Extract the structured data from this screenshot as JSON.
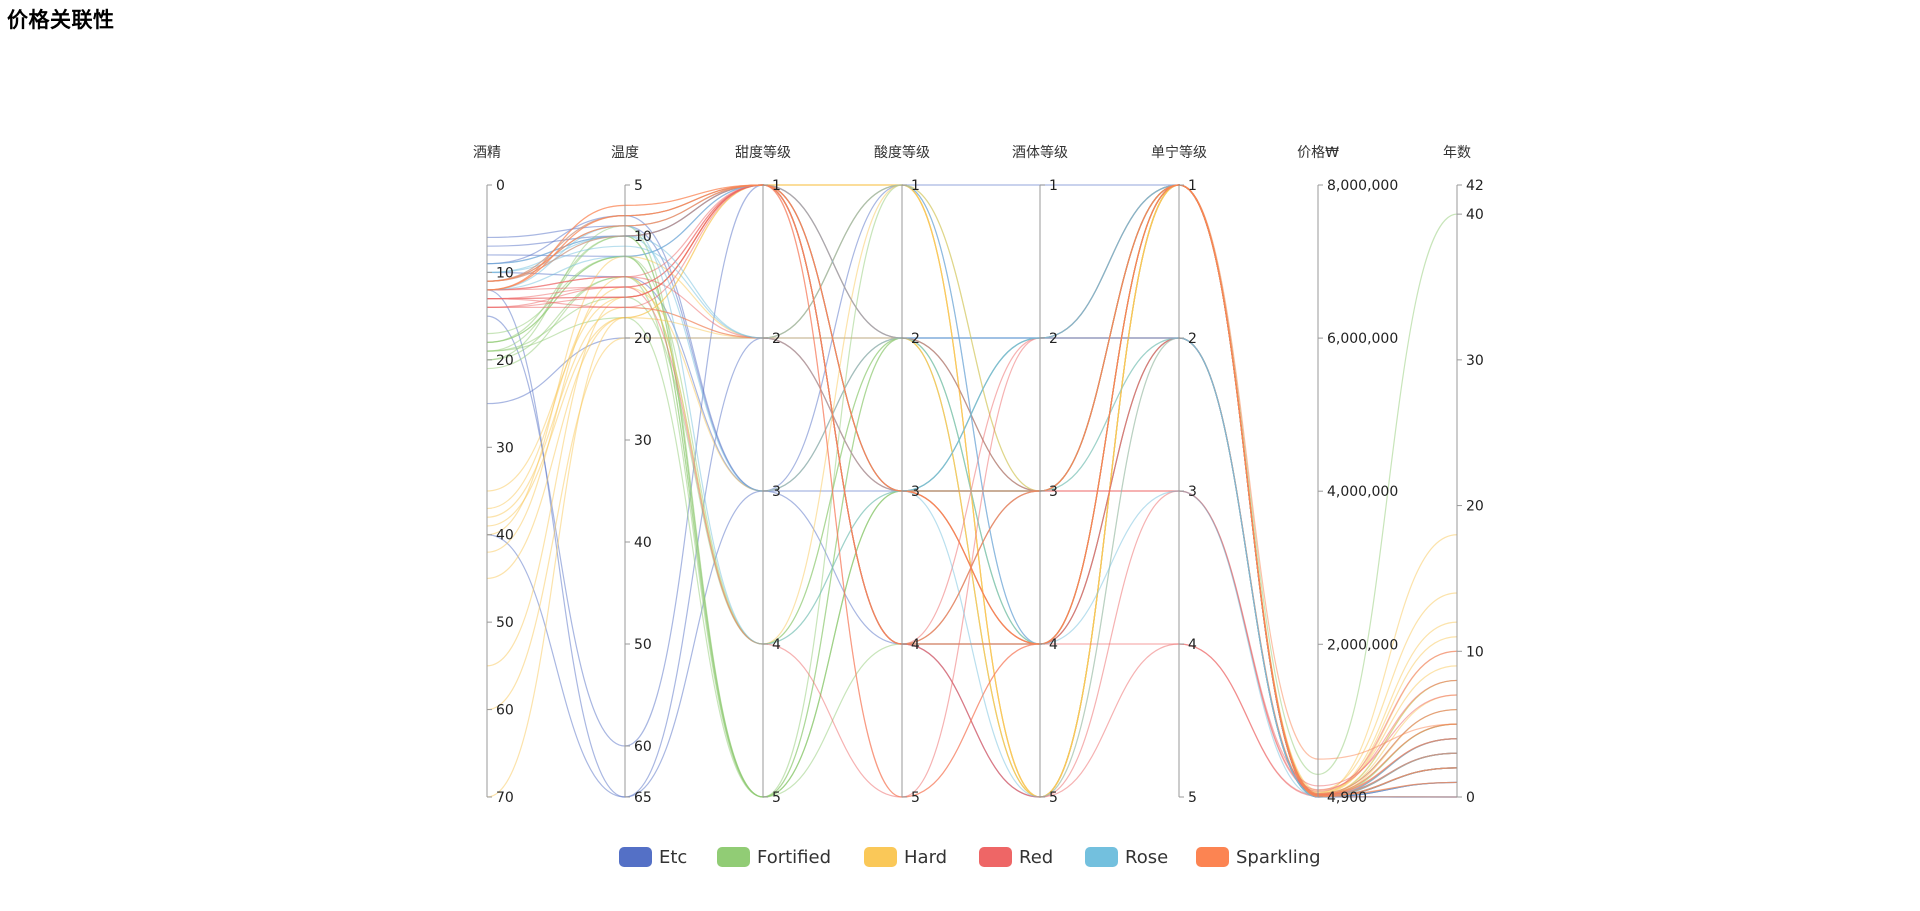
{
  "page": {
    "title": "价格关联性"
  },
  "colors": {
    "Etc": "#5470c6",
    "Fortified": "#91cc75",
    "Hard": "#fac858",
    "Red": "#ee6666",
    "Rose": "#73c0de",
    "Sparkling": "#fc8452"
  },
  "chart_data": {
    "type": "parallel",
    "curve": "smooth",
    "legend_position": "bottom",
    "axes": [
      {
        "name": "酒精",
        "min": 0,
        "max": 70,
        "inverse": true,
        "ticks": [
          "0",
          "10",
          "20",
          "30",
          "40",
          "50",
          "60",
          "70"
        ],
        "tick_values": [
          0,
          10,
          20,
          30,
          40,
          50,
          60,
          70
        ]
      },
      {
        "name": "温度",
        "min": 5,
        "max": 65,
        "inverse": true,
        "ticks": [
          "5",
          "10",
          "20",
          "30",
          "40",
          "50",
          "60",
          "65"
        ],
        "tick_values": [
          5,
          10,
          20,
          30,
          40,
          50,
          60,
          65
        ]
      },
      {
        "name": "甜度等级",
        "min": 1,
        "max": 5,
        "inverse": true,
        "ticks": [
          "1",
          "2",
          "3",
          "4",
          "5"
        ],
        "tick_values": [
          1,
          2,
          3,
          4,
          5
        ]
      },
      {
        "name": "酸度等级",
        "min": 1,
        "max": 5,
        "inverse": true,
        "ticks": [
          "1",
          "2",
          "3",
          "4",
          "5"
        ],
        "tick_values": [
          1,
          2,
          3,
          4,
          5
        ]
      },
      {
        "name": "酒体等级",
        "min": 1,
        "max": 5,
        "inverse": true,
        "ticks": [
          "1",
          "2",
          "3",
          "4",
          "5"
        ],
        "tick_values": [
          1,
          2,
          3,
          4,
          5
        ]
      },
      {
        "name": "单宁等级",
        "min": 1,
        "max": 5,
        "inverse": true,
        "ticks": [
          "1",
          "2",
          "3",
          "4",
          "5"
        ],
        "tick_values": [
          1,
          2,
          3,
          4,
          5
        ]
      },
      {
        "name": "价格₩",
        "min": 4900,
        "max": 8000000,
        "inverse": false,
        "ticks": [
          "4,900",
          "2,000,000",
          "4,000,000",
          "6,000,000",
          "8,000,000"
        ],
        "tick_values": [
          4900,
          2000000,
          4000000,
          6000000,
          8000000
        ]
      },
      {
        "name": "年数",
        "min": 0,
        "max": 42,
        "inverse": false,
        "ticks": [
          "0",
          "10",
          "20",
          "30",
          "40",
          "42"
        ],
        "tick_values": [
          0,
          10,
          20,
          30,
          40,
          42
        ]
      }
    ],
    "legend": [
      "Etc",
      "Fortified",
      "Hard",
      "Red",
      "Rose",
      "Sparkling"
    ],
    "series": [
      {
        "name": "Etc",
        "data": [
          [
            7,
            10,
            1,
            2,
            2,
            1,
            5000,
            1
          ],
          [
            9,
            8,
            3,
            1,
            4,
            1,
            6000,
            2
          ],
          [
            8,
            12,
            1,
            3,
            2,
            2,
            8000,
            3
          ],
          [
            25,
            20,
            2,
            1,
            1,
            1,
            5500,
            0
          ],
          [
            6,
            9,
            3,
            4,
            4,
            1,
            7000,
            2
          ],
          [
            40,
            65,
            3,
            2,
            2,
            2,
            5000,
            1
          ],
          [
            15,
            60,
            1,
            3,
            3,
            1,
            6000,
            0
          ],
          [
            12,
            65,
            2,
            2,
            3,
            1,
            5000,
            4
          ],
          [
            9,
            10,
            1,
            4,
            5,
            1,
            5500,
            2
          ],
          [
            10,
            14,
            3,
            3,
            4,
            2,
            6000,
            1
          ]
        ]
      },
      {
        "name": "Fortified",
        "data": [
          [
            19,
            10,
            5,
            2,
            3,
            1,
            10000,
            2
          ],
          [
            18,
            12,
            4,
            3,
            3,
            2,
            12000,
            3
          ],
          [
            20,
            14,
            5,
            2,
            4,
            1,
            50000,
            6
          ],
          [
            18,
            10,
            5,
            3,
            2,
            1,
            15000,
            5
          ],
          [
            17,
            12,
            5,
            1,
            3,
            1,
            20000,
            8
          ],
          [
            19,
            16,
            4,
            2,
            4,
            2,
            9000,
            2
          ],
          [
            20,
            9,
            5,
            3,
            3,
            1,
            300000,
            40
          ],
          [
            18,
            12,
            5,
            4,
            4,
            1,
            14000,
            4
          ],
          [
            21,
            14,
            4,
            2,
            5,
            1,
            20000,
            3
          ],
          [
            19,
            18,
            5,
            3,
            3,
            1,
            30000,
            5
          ]
        ]
      },
      {
        "name": "Hard",
        "data": [
          [
            40,
            12,
            2,
            1,
            5,
            1,
            50000,
            12
          ],
          [
            35,
            16,
            1,
            1,
            5,
            1,
            40000,
            10
          ],
          [
            70,
            18,
            1,
            2,
            5,
            2,
            60000,
            18
          ],
          [
            60,
            20,
            2,
            3,
            4,
            1,
            20000,
            6
          ],
          [
            45,
            18,
            1,
            1,
            5,
            1,
            35000,
            5
          ],
          [
            38,
            17,
            2,
            2,
            5,
            1,
            90000,
            14
          ],
          [
            42,
            14,
            4,
            1,
            5,
            1,
            30000,
            8
          ],
          [
            39,
            18,
            2,
            1,
            3,
            1,
            45000,
            11
          ],
          [
            55,
            16,
            1,
            1,
            5,
            1,
            70000,
            9
          ],
          [
            37,
            15,
            3,
            2,
            5,
            1,
            25000,
            7
          ]
        ]
      },
      {
        "name": "Red",
        "data": [
          [
            13,
            16,
            1,
            4,
            3,
            1,
            30000,
            3
          ],
          [
            14,
            15,
            1,
            5,
            2,
            1,
            50000,
            6
          ],
          [
            12,
            14,
            2,
            3,
            4,
            2,
            20000,
            4
          ],
          [
            13,
            17,
            1,
            4,
            5,
            3,
            80000,
            10
          ],
          [
            14,
            16,
            1,
            4,
            2,
            2,
            40000,
            5
          ],
          [
            13,
            15,
            4,
            5,
            4,
            4,
            25000,
            3
          ],
          [
            12,
            14,
            1,
            2,
            3,
            3,
            100000,
            8
          ],
          [
            13,
            16,
            1,
            4,
            5,
            4,
            15000,
            2
          ],
          [
            14,
            17,
            2,
            3,
            3,
            3,
            150000,
            7
          ],
          [
            12,
            15,
            1,
            4,
            4,
            2,
            35000,
            4
          ]
        ]
      },
      {
        "name": "Rose",
        "data": [
          [
            11,
            10,
            2,
            3,
            2,
            1,
            15000,
            2
          ],
          [
            12,
            9,
            1,
            3,
            2,
            2,
            12000,
            1
          ],
          [
            9,
            10,
            3,
            2,
            4,
            1,
            20000,
            3
          ],
          [
            11,
            8,
            1,
            4,
            3,
            2,
            10000,
            0
          ],
          [
            10,
            11,
            2,
            1,
            4,
            3,
            8000,
            2
          ],
          [
            12,
            12,
            1,
            3,
            3,
            1,
            18000,
            1
          ],
          [
            11,
            9,
            4,
            3,
            5,
            2,
            9000,
            4
          ],
          [
            10,
            10,
            1,
            2,
            2,
            1,
            14000,
            3
          ]
        ]
      },
      {
        "name": "Sparkling",
        "data": [
          [
            11,
            8,
            1,
            4,
            3,
            1,
            10000,
            2
          ],
          [
            12,
            7,
            1,
            3,
            4,
            1,
            20000,
            3
          ],
          [
            11,
            9,
            1,
            5,
            4,
            1,
            30000,
            1
          ],
          [
            12,
            8,
            1,
            3,
            3,
            1,
            15000,
            2
          ],
          [
            11,
            10,
            1,
            4,
            4,
            1,
            500000,
            5
          ],
          [
            12,
            8,
            1,
            3,
            4,
            1,
            25000,
            1
          ],
          [
            11,
            9,
            1,
            4,
            3,
            1,
            12000,
            0
          ],
          [
            12,
            7,
            1,
            3,
            4,
            1,
            40000,
            4
          ]
        ]
      }
    ]
  }
}
